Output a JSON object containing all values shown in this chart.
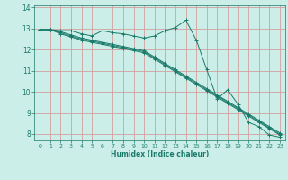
{
  "title": "",
  "xlabel": "Humidex (Indice chaleur)",
  "ylabel": "",
  "bg_color": "#cceee8",
  "grid_color": "#d4a0a0",
  "line_color": "#1a7a6a",
  "tick_color": "#1a7a6a",
  "xlim": [
    -0.5,
    23.5
  ],
  "ylim": [
    7.7,
    14.1
  ],
  "xticks": [
    0,
    1,
    2,
    3,
    4,
    5,
    6,
    7,
    8,
    9,
    10,
    11,
    12,
    13,
    14,
    15,
    16,
    17,
    18,
    19,
    20,
    21,
    22,
    23
  ],
  "yticks": [
    8,
    9,
    10,
    11,
    12,
    13,
    14
  ],
  "series": [
    {
      "x": [
        0,
        1,
        2,
        3,
        4,
        5,
        6,
        7,
        8,
        9,
        10,
        11,
        12,
        13,
        14,
        15,
        16,
        17,
        18,
        19,
        20,
        21,
        22,
        23
      ],
      "y": [
        12.95,
        12.95,
        12.9,
        12.9,
        12.75,
        12.65,
        12.9,
        12.8,
        12.75,
        12.65,
        12.55,
        12.65,
        12.9,
        13.05,
        13.4,
        12.45,
        11.05,
        9.65,
        10.1,
        9.4,
        8.55,
        8.35,
        7.95,
        7.85
      ]
    },
    {
      "x": [
        0,
        1,
        2,
        3,
        4,
        5,
        6,
        7,
        8,
        9,
        10,
        11,
        12,
        13,
        14,
        15,
        16,
        17,
        18,
        19,
        20,
        21,
        22,
        23
      ],
      "y": [
        12.95,
        12.95,
        12.85,
        12.7,
        12.55,
        12.45,
        12.35,
        12.25,
        12.15,
        12.05,
        11.95,
        11.65,
        11.35,
        11.05,
        10.75,
        10.45,
        10.15,
        9.85,
        9.55,
        9.25,
        8.95,
        8.65,
        8.35,
        8.05
      ]
    },
    {
      "x": [
        0,
        1,
        2,
        3,
        4,
        5,
        6,
        7,
        8,
        9,
        10,
        11,
        12,
        13,
        14,
        15,
        16,
        17,
        18,
        19,
        20,
        21,
        22,
        23
      ],
      "y": [
        12.95,
        12.95,
        12.8,
        12.65,
        12.5,
        12.4,
        12.3,
        12.2,
        12.1,
        12.0,
        11.9,
        11.6,
        11.3,
        11.0,
        10.7,
        10.4,
        10.1,
        9.8,
        9.5,
        9.2,
        8.9,
        8.6,
        8.3,
        8.0
      ]
    },
    {
      "x": [
        0,
        1,
        2,
        3,
        4,
        5,
        6,
        7,
        8,
        9,
        10,
        11,
        12,
        13,
        14,
        15,
        16,
        17,
        18,
        19,
        20,
        21,
        22,
        23
      ],
      "y": [
        12.95,
        12.95,
        12.75,
        12.6,
        12.45,
        12.35,
        12.25,
        12.15,
        12.05,
        11.95,
        11.85,
        11.55,
        11.25,
        10.95,
        10.65,
        10.35,
        10.05,
        9.75,
        9.45,
        9.15,
        8.85,
        8.55,
        8.25,
        7.95
      ]
    }
  ]
}
